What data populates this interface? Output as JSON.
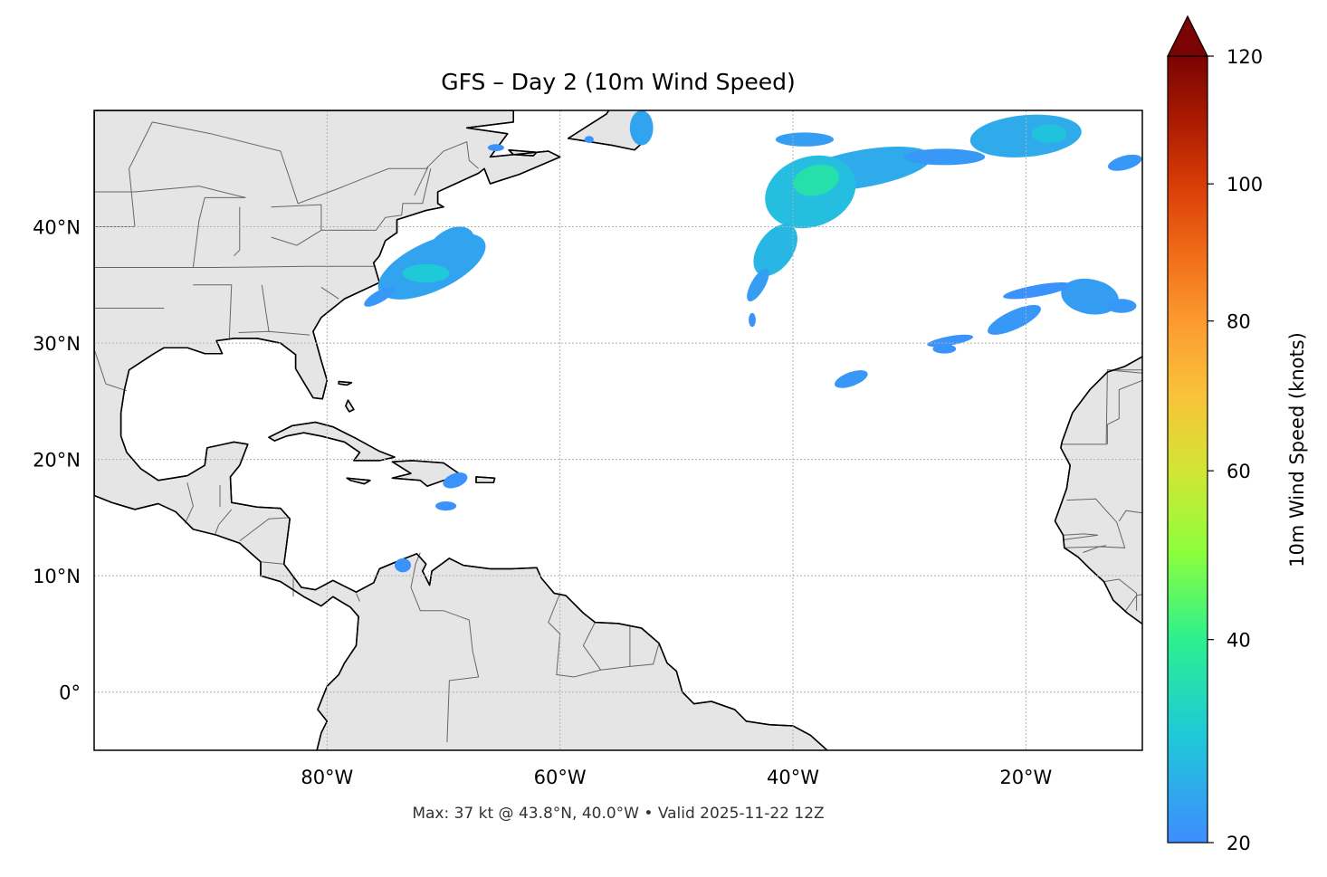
{
  "chart_data": {
    "type": "map",
    "title": "GFS – Day 2 (10m Wind Speed)",
    "footer": "Max: 37 kt @ 43.8°N, 40.0°W • Valid 2025-11-22 12Z",
    "projection": "plate carree",
    "extent": {
      "lon": [
        -100,
        -10
      ],
      "lat": [
        -5,
        50
      ]
    },
    "grid": true,
    "lon_ticks": [
      {
        "value": -80,
        "label": "80°W"
      },
      {
        "value": -60,
        "label": "60°W"
      },
      {
        "value": -40,
        "label": "40°W"
      },
      {
        "value": -20,
        "label": "20°W"
      }
    ],
    "lat_ticks": [
      {
        "value": 40,
        "label": "40°N"
      },
      {
        "value": 30,
        "label": "30°N"
      },
      {
        "value": 20,
        "label": "20°N"
      },
      {
        "value": 10,
        "label": "10°N"
      },
      {
        "value": 0,
        "label": "0°"
      }
    ],
    "colorbar": {
      "label": "10m Wind Speed (knots)",
      "range": [
        20,
        120
      ],
      "extend": "max",
      "norm": "power",
      "gamma": 0.65,
      "ticks": [
        {
          "value": 20,
          "label": "20"
        },
        {
          "value": 40,
          "label": "40"
        },
        {
          "value": 60,
          "label": "60"
        },
        {
          "value": 80,
          "label": "80"
        },
        {
          "value": 100,
          "label": "100"
        },
        {
          "value": 120,
          "label": "120"
        }
      ],
      "colors": [
        {
          "value": 20,
          "color": "#3f8cff"
        },
        {
          "value": 30,
          "color": "#1ec9d8"
        },
        {
          "value": 40,
          "color": "#2cf08f"
        },
        {
          "value": 50,
          "color": "#8cff3c"
        },
        {
          "value": 60,
          "color": "#d2e534"
        },
        {
          "value": 70,
          "color": "#f9c23a"
        },
        {
          "value": 80,
          "color": "#fc9a2f"
        },
        {
          "value": 90,
          "color": "#f06a17"
        },
        {
          "value": 100,
          "color": "#d83c07"
        },
        {
          "value": 110,
          "color": "#a91a02"
        },
        {
          "value": 120,
          "color": "#7a0403"
        }
      ]
    },
    "max_point": {
      "value_kt": 37,
      "lat": 43.8,
      "lon": -40.0
    },
    "colors": {
      "land": "#e5e5e5",
      "coast": "#000000",
      "borders": "#666666",
      "grid": "#b0b0b0"
    }
  }
}
